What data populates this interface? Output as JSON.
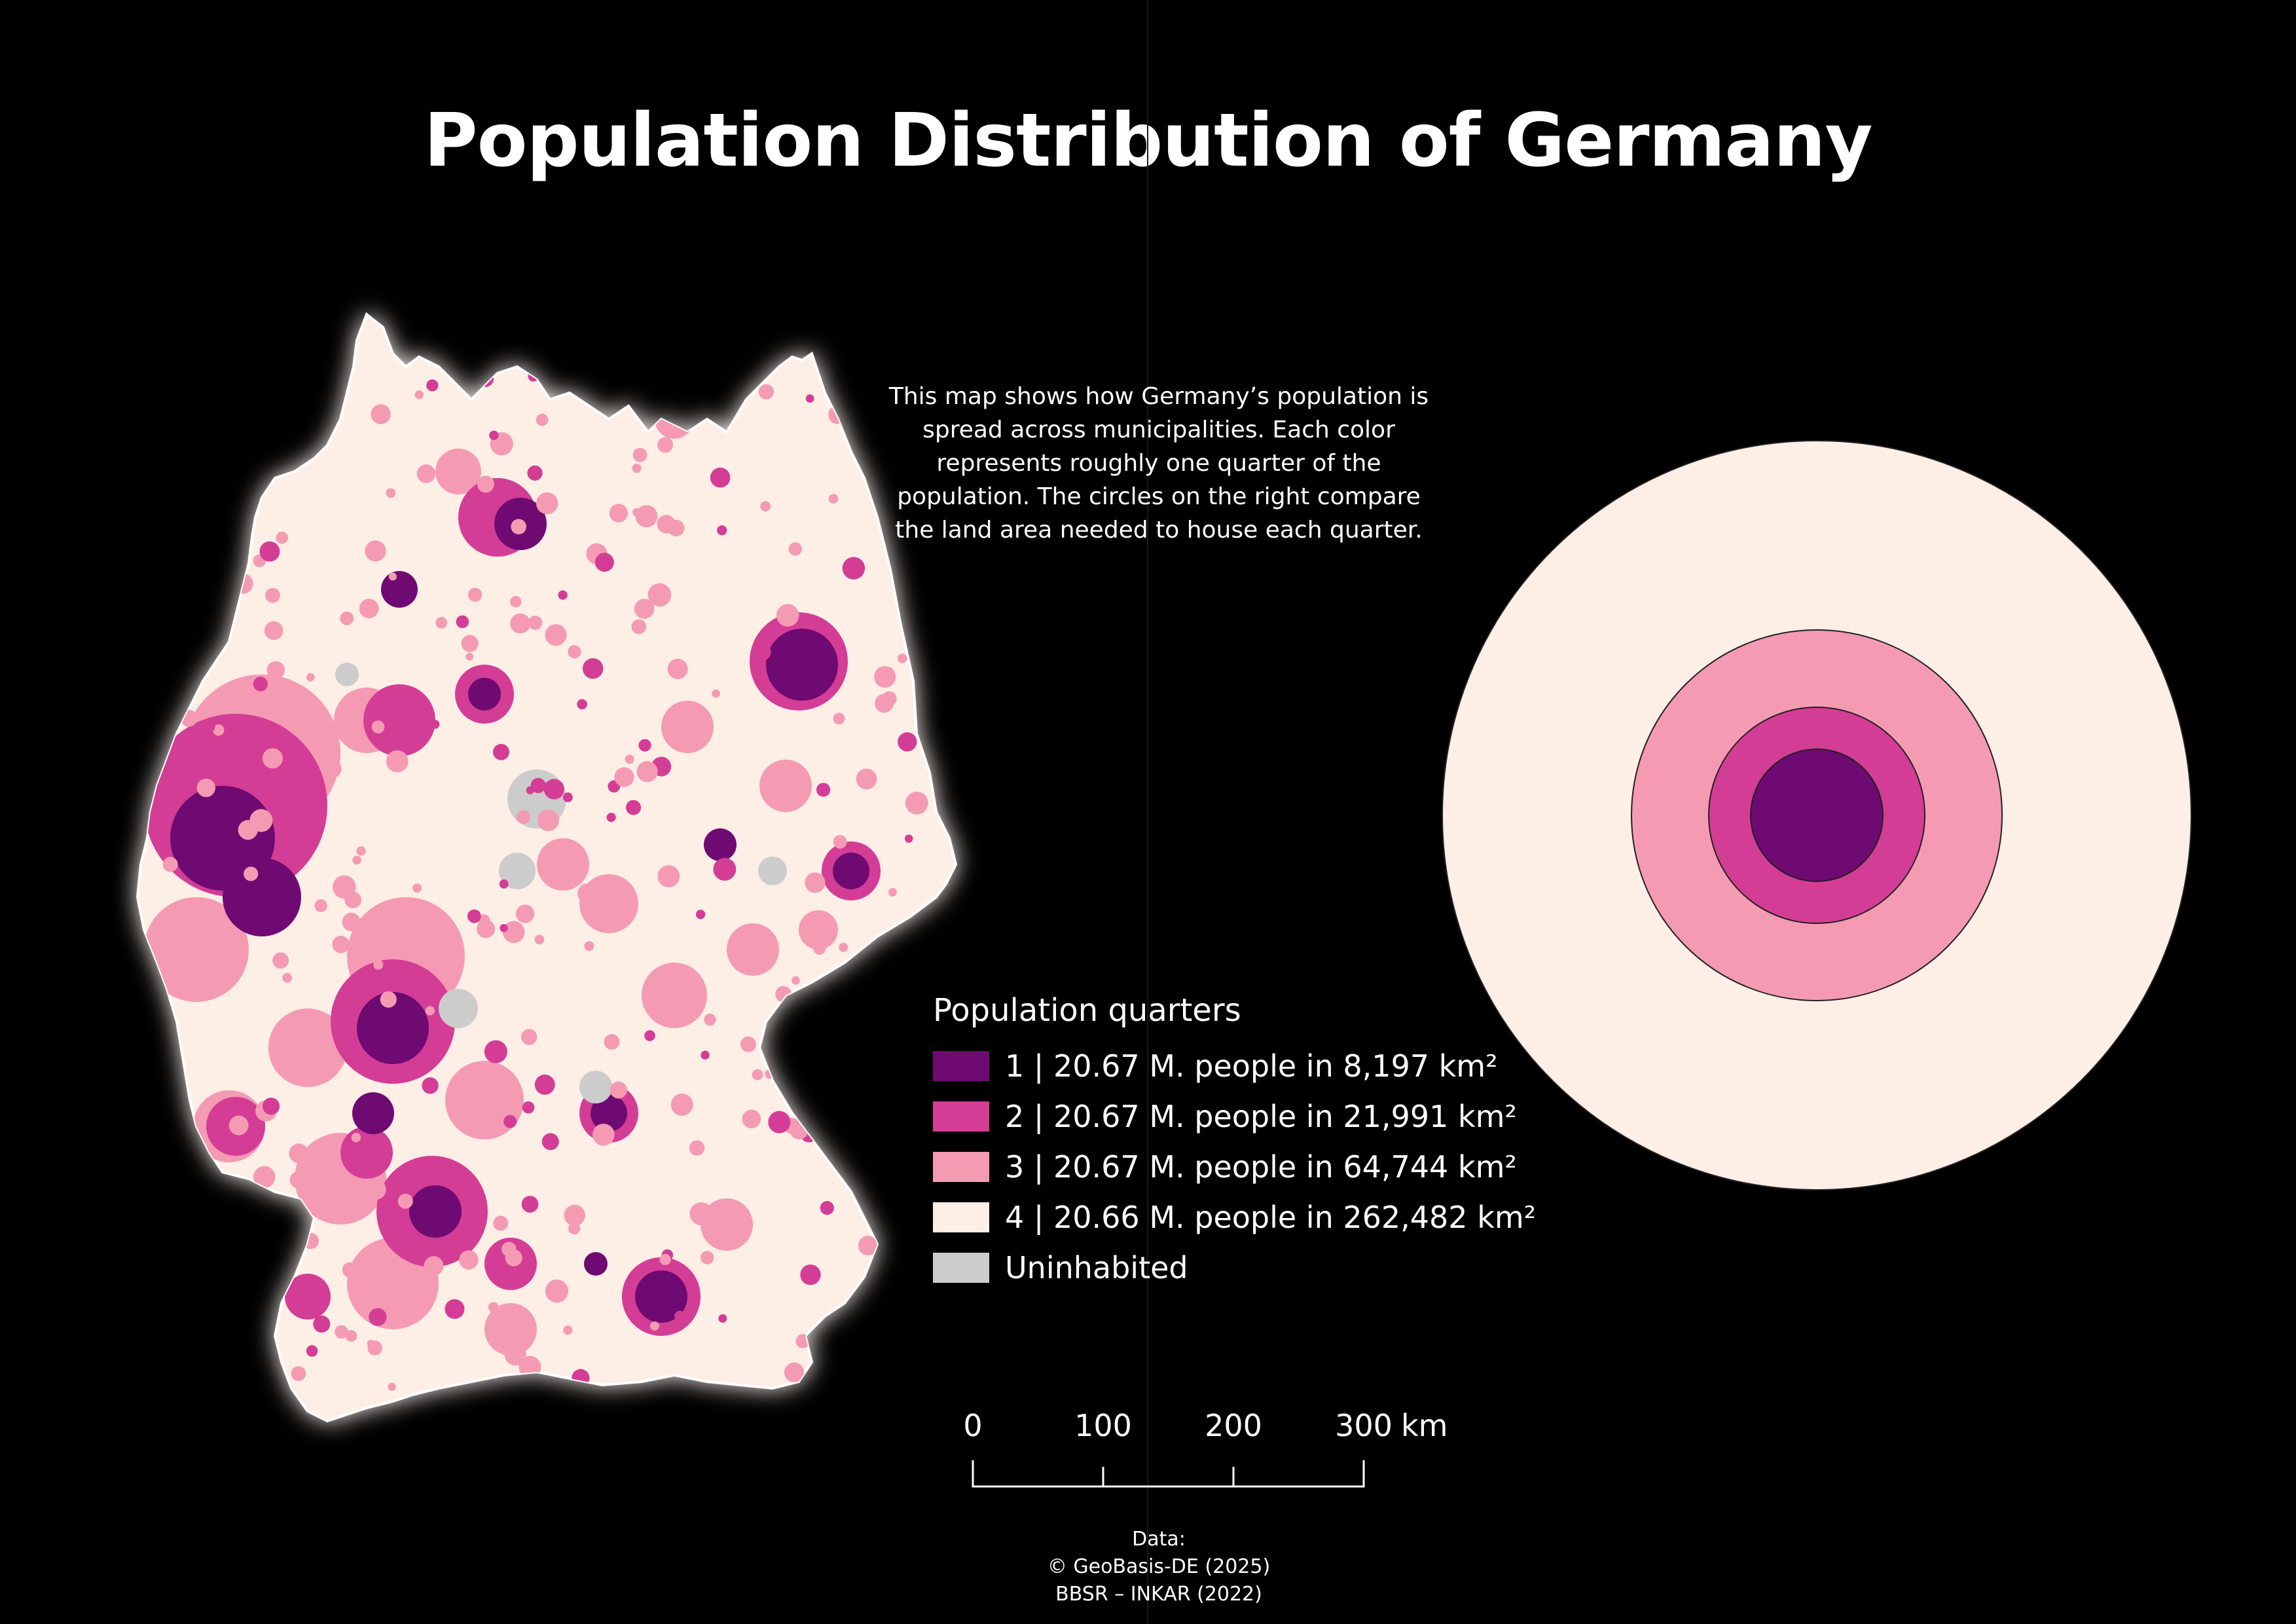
{
  "title": "Population Distribution of Germany",
  "description": "This map shows how Germany’s population is spread across municipalities. Each color represents roughly one quarter of the population. The circles on the right compare the land area needed to house each quarter.",
  "legend": {
    "title": "Population quarters",
    "items": [
      {
        "label": "1 | 20.67 M. people in 8,197 km²",
        "color": "#6f0a72",
        "population_millions": 20.67,
        "area_km2": 8197
      },
      {
        "label": "2 | 20.67 M. people in 21,991 km²",
        "color": "#d43d95",
        "population_millions": 20.67,
        "area_km2": 21991
      },
      {
        "label": "3 | 20.67 M. people in 64,744 km²",
        "color": "#f49bb3",
        "population_millions": 20.67,
        "area_km2": 64744
      },
      {
        "label": "4 | 20.66 M. people in 262,482 km²",
        "color": "#fdeee6",
        "population_millions": 20.66,
        "area_km2": 262482
      },
      {
        "label": "Uninhabited",
        "color": "#cccccc"
      }
    ]
  },
  "scalebar": {
    "ticks": [
      "0",
      "100",
      "200",
      "300"
    ],
    "unit": "km"
  },
  "credits": {
    "heading": "Data:",
    "lines": [
      "© GeoBasis-DE (2025)",
      "BBSR – INKAR (2022)"
    ]
  },
  "map": {
    "background": "#000000",
    "land_color": "#fdeee6",
    "glow_color": "#ffffff"
  }
}
